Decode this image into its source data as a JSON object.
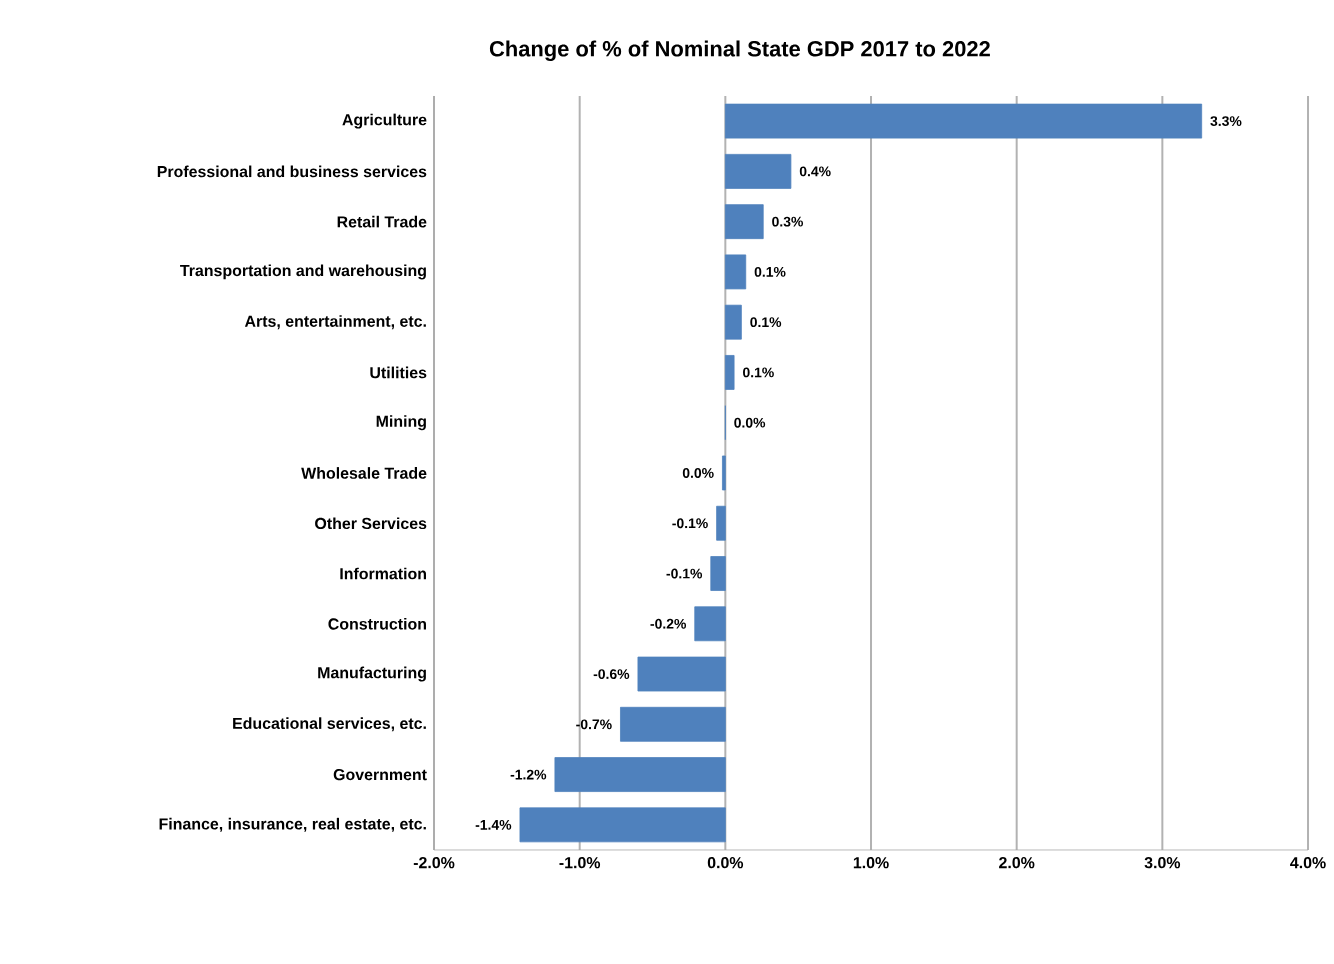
{
  "chart_data": {
    "type": "bar",
    "orientation": "horizontal",
    "title": "Change of % of Nominal State GDP 2017 to 2022",
    "categories": [
      "Agriculture",
      "Professional and business services",
      "Retail Trade",
      "Transportation and warehousing",
      "Arts, entertainment, etc.",
      "Utilities",
      "Mining",
      "Wholesale Trade",
      "Other Services",
      "Information",
      "Construction",
      "Manufacturing",
      "Educational services, etc.",
      "Government",
      "Finance, insurance, real estate, etc."
    ],
    "values": [
      3.27,
      0.45,
      0.26,
      0.14,
      0.11,
      0.06,
      0.0,
      -0.02,
      -0.06,
      -0.1,
      -0.21,
      -0.6,
      -0.72,
      -1.17,
      -1.41
    ],
    "value_labels": [
      "3.3%",
      "0.4%",
      "0.3%",
      "0.1%",
      "0.1%",
      "0.1%",
      "0.0%",
      "0.0%",
      "-0.1%",
      "-0.1%",
      "-0.2%",
      "-0.6%",
      "-0.7%",
      "-1.2%",
      "-1.4%"
    ],
    "color": "#4f81bd",
    "xlim": [
      -2.0,
      4.0
    ],
    "xticks": [
      {
        "value": -2.0,
        "label": "-2.0%"
      },
      {
        "value": -1.0,
        "label": "-1.0%"
      },
      {
        "value": 0.0,
        "label": "0.0%"
      },
      {
        "value": 1.0,
        "label": "1.0%"
      },
      {
        "value": 2.0,
        "label": "2.0%"
      },
      {
        "value": 3.0,
        "label": "3.0%"
      },
      {
        "value": 4.0,
        "label": "4.0%"
      }
    ],
    "grid": "x"
  }
}
